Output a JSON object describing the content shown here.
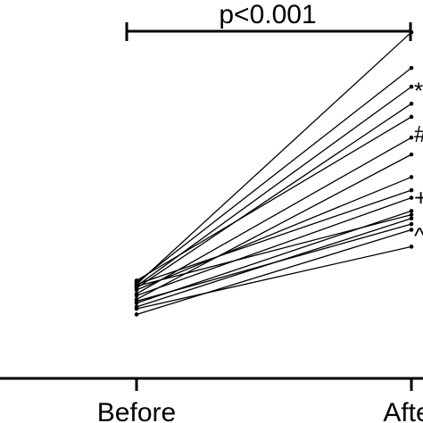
{
  "chart_data": {
    "type": "line",
    "categories": [
      "Before",
      "After"
    ],
    "series": [
      {
        "values": [
          1.0,
          7.7
        ]
      },
      {
        "values": [
          1.05,
          6.75
        ]
      },
      {
        "values": [
          0.95,
          6.25
        ]
      },
      {
        "values": [
          0.9,
          5.8
        ]
      },
      {
        "values": [
          1.1,
          5.45
        ]
      },
      {
        "values": [
          0.75,
          4.9
        ]
      },
      {
        "values": [
          0.6,
          4.45
        ]
      },
      {
        "values": [
          0.85,
          3.85
        ]
      },
      {
        "values": [
          1.0,
          3.5
        ]
      },
      {
        "values": [
          0.7,
          3.3
        ]
      },
      {
        "values": [
          0.5,
          2.95
        ]
      },
      {
        "values": [
          0.95,
          2.85
        ]
      },
      {
        "values": [
          0.4,
          2.75
        ]
      },
      {
        "values": [
          0.55,
          2.6
        ]
      },
      {
        "values": [
          0.2,
          2.45
        ]
      },
      {
        "values": [
          0.35,
          2.0
        ]
      }
    ],
    "ylim": [
      -1.5,
      8.2
    ],
    "annotation": {
      "text": "p<0.001",
      "from": "Before",
      "to": "After"
    },
    "markers": [
      {
        "text": "*",
        "value": 6.15
      },
      {
        "text": "#",
        "value": 5.0
      },
      {
        "text": "+",
        "value": 3.3
      },
      {
        "text": "^",
        "value": 2.3
      }
    ]
  }
}
